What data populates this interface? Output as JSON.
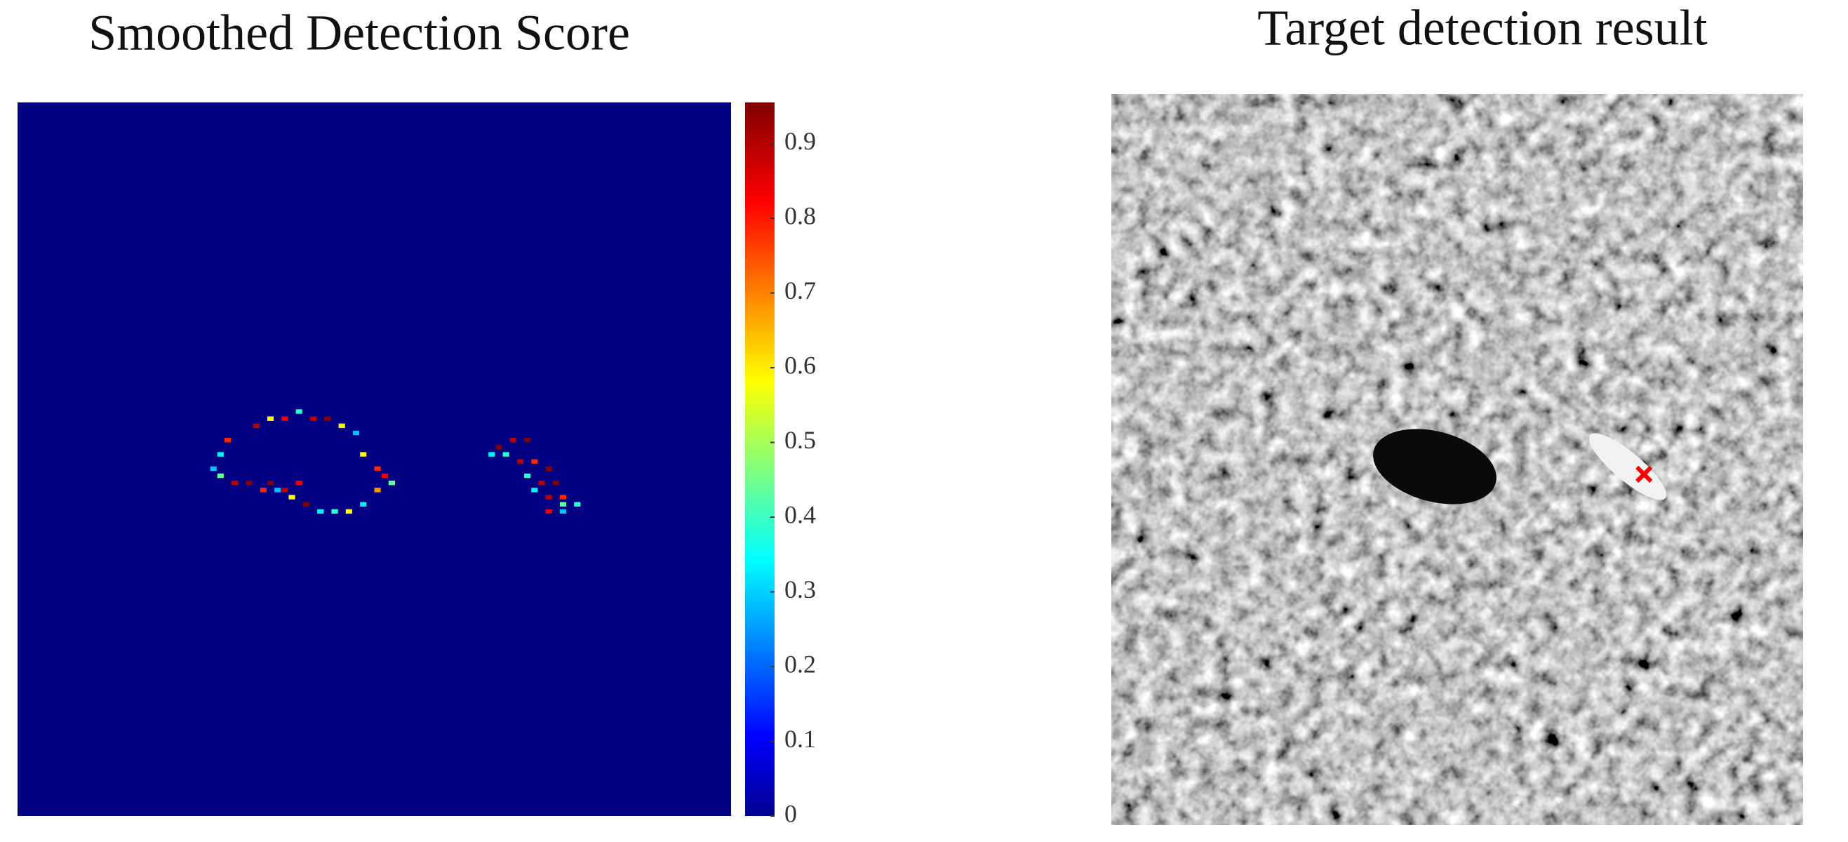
{
  "chart_data": [
    {
      "type": "heatmap",
      "title": "Smoothed Detection Score",
      "xlim": [
        0,
        100
      ],
      "ylim": [
        0,
        100
      ],
      "x": [
        33,
        35,
        37,
        39,
        41,
        43,
        45,
        47,
        29,
        28,
        27,
        28,
        30,
        32,
        34,
        36,
        38,
        40,
        42,
        44,
        46,
        48,
        50,
        51,
        50,
        48,
        52,
        35,
        37,
        39,
        67,
        69,
        71,
        68,
        70,
        72,
        74,
        71,
        73,
        75,
        76,
        74,
        76,
        78,
        76,
        74,
        72,
        66
      ],
      "y": [
        45,
        44,
        44,
        43,
        44,
        44,
        45,
        46,
        47,
        49,
        51,
        52,
        53,
        53,
        54,
        54,
        55,
        56,
        57,
        57,
        57,
        56,
        54,
        52,
        51,
        49,
        53,
        53,
        54,
        53,
        48,
        47,
        47,
        49,
        50,
        50,
        51,
        52,
        53,
        53,
        55,
        55,
        56,
        56,
        57,
        57,
        54,
        49
      ],
      "values": [
        0.9,
        0.6,
        0.85,
        0.4,
        0.9,
        0.95,
        0.6,
        0.3,
        0.8,
        0.35,
        0.3,
        0.45,
        0.9,
        0.95,
        0.8,
        0.3,
        0.6,
        0.95,
        0.35,
        0.4,
        0.6,
        0.35,
        0.7,
        0.85,
        0.8,
        0.6,
        0.45,
        0.95,
        0.9,
        0.85,
        0.95,
        0.9,
        0.95,
        0.4,
        0.9,
        0.8,
        0.95,
        0.4,
        0.9,
        0.95,
        0.8,
        0.9,
        0.45,
        0.4,
        0.3,
        0.85,
        0.35,
        0.35
      ],
      "colormap": "jet",
      "clim": [
        0,
        0.955
      ],
      "cticks": [
        0,
        0.1,
        0.2,
        0.3,
        0.4,
        0.5,
        0.6,
        0.7,
        0.8,
        0.9
      ]
    },
    {
      "type": "image",
      "title": "Target detection result",
      "xlim": [
        0,
        100
      ],
      "ylim": [
        0,
        100
      ],
      "x": [
        77
      ],
      "y": [
        52
      ],
      "color": "#ff0000"
    }
  ]
}
